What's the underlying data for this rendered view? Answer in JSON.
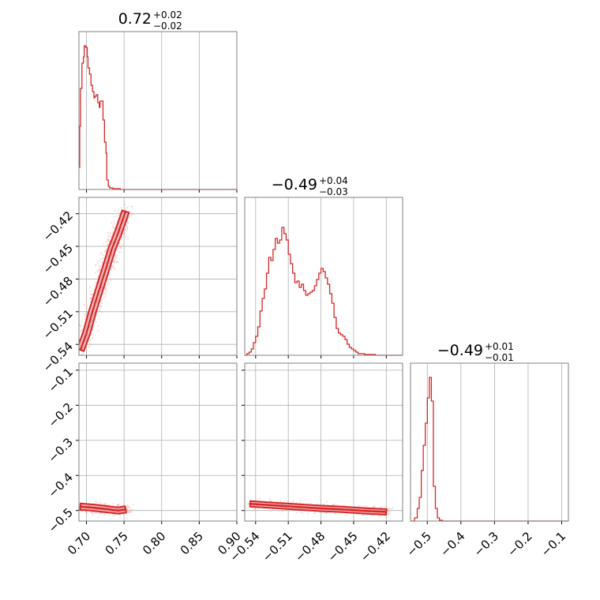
{
  "chart_data": [
    {
      "type": "histogram",
      "panel": "hist-param-1",
      "title": {
        "value": "0.72",
        "plus": "+0.02",
        "minus": "−0.02"
      },
      "xlim": [
        0.69,
        0.9
      ],
      "xticks": [
        0.7,
        0.75,
        0.8,
        0.85,
        0.9
      ],
      "xtick_labels": [],
      "grid": true,
      "bins": [
        {
          "x": 0.69,
          "y": 0.14
        },
        {
          "x": 0.691,
          "y": 0.4
        },
        {
          "x": 0.692,
          "y": 0.64
        },
        {
          "x": 0.694,
          "y": 0.8
        },
        {
          "x": 0.696,
          "y": 0.84
        },
        {
          "x": 0.697,
          "y": 0.91
        },
        {
          "x": 0.699,
          "y": 0.9
        },
        {
          "x": 0.701,
          "y": 0.84
        },
        {
          "x": 0.702,
          "y": 0.77
        },
        {
          "x": 0.704,
          "y": 0.73
        },
        {
          "x": 0.706,
          "y": 0.66
        },
        {
          "x": 0.708,
          "y": 0.62
        },
        {
          "x": 0.71,
          "y": 0.58
        },
        {
          "x": 0.711,
          "y": 0.59
        },
        {
          "x": 0.713,
          "y": 0.6
        },
        {
          "x": 0.715,
          "y": 0.55
        },
        {
          "x": 0.717,
          "y": 0.52
        },
        {
          "x": 0.718,
          "y": 0.56
        },
        {
          "x": 0.72,
          "y": 0.56
        },
        {
          "x": 0.722,
          "y": 0.44
        },
        {
          "x": 0.724,
          "y": 0.3
        },
        {
          "x": 0.726,
          "y": 0.23
        },
        {
          "x": 0.727,
          "y": 0.06
        },
        {
          "x": 0.729,
          "y": 0.02
        },
        {
          "x": 0.731,
          "y": 0.01
        },
        {
          "x": 0.735,
          "y": 0.005
        },
        {
          "x": 0.745,
          "y": 0.0
        }
      ]
    },
    {
      "type": "histogram",
      "panel": "hist-param-2",
      "title": {
        "value": "−0.49",
        "plus": "+0.04",
        "minus": "−0.03"
      },
      "xlim": [
        -0.55,
        -0.405
      ],
      "xticks": [
        -0.54,
        -0.51,
        -0.48,
        -0.45,
        -0.42
      ],
      "xtick_labels": [],
      "grid": true,
      "bins": [
        {
          "x": -0.55,
          "y": 0.0
        },
        {
          "x": -0.548,
          "y": 0.01
        },
        {
          "x": -0.546,
          "y": 0.02
        },
        {
          "x": -0.544,
          "y": 0.04
        },
        {
          "x": -0.542,
          "y": 0.08
        },
        {
          "x": -0.54,
          "y": 0.12
        },
        {
          "x": -0.538,
          "y": 0.18
        },
        {
          "x": -0.536,
          "y": 0.28
        },
        {
          "x": -0.534,
          "y": 0.36
        },
        {
          "x": -0.532,
          "y": 0.42
        },
        {
          "x": -0.53,
          "y": 0.52
        },
        {
          "x": -0.528,
          "y": 0.62
        },
        {
          "x": -0.526,
          "y": 0.6
        },
        {
          "x": -0.524,
          "y": 0.67
        },
        {
          "x": -0.522,
          "y": 0.74
        },
        {
          "x": -0.52,
          "y": 0.71
        },
        {
          "x": -0.518,
          "y": 0.73
        },
        {
          "x": -0.516,
          "y": 0.81
        },
        {
          "x": -0.514,
          "y": 0.77
        },
        {
          "x": -0.512,
          "y": 0.73
        },
        {
          "x": -0.51,
          "y": 0.64
        },
        {
          "x": -0.508,
          "y": 0.58
        },
        {
          "x": -0.506,
          "y": 0.52
        },
        {
          "x": -0.504,
          "y": 0.46
        },
        {
          "x": -0.502,
          "y": 0.47
        },
        {
          "x": -0.5,
          "y": 0.43
        },
        {
          "x": -0.498,
          "y": 0.45
        },
        {
          "x": -0.496,
          "y": 0.41
        },
        {
          "x": -0.494,
          "y": 0.38
        },
        {
          "x": -0.492,
          "y": 0.39
        },
        {
          "x": -0.49,
          "y": 0.4
        },
        {
          "x": -0.488,
          "y": 0.41
        },
        {
          "x": -0.486,
          "y": 0.44
        },
        {
          "x": -0.484,
          "y": 0.48
        },
        {
          "x": -0.482,
          "y": 0.52
        },
        {
          "x": -0.48,
          "y": 0.55
        },
        {
          "x": -0.478,
          "y": 0.53
        },
        {
          "x": -0.476,
          "y": 0.49
        },
        {
          "x": -0.474,
          "y": 0.45
        },
        {
          "x": -0.472,
          "y": 0.39
        },
        {
          "x": -0.47,
          "y": 0.33
        },
        {
          "x": -0.468,
          "y": 0.24
        },
        {
          "x": -0.466,
          "y": 0.17
        },
        {
          "x": -0.464,
          "y": 0.14
        },
        {
          "x": -0.462,
          "y": 0.13
        },
        {
          "x": -0.46,
          "y": 0.12
        },
        {
          "x": -0.458,
          "y": 0.1
        },
        {
          "x": -0.456,
          "y": 0.07
        },
        {
          "x": -0.454,
          "y": 0.05
        },
        {
          "x": -0.452,
          "y": 0.04
        },
        {
          "x": -0.45,
          "y": 0.03
        },
        {
          "x": -0.448,
          "y": 0.02
        },
        {
          "x": -0.446,
          "y": 0.01
        },
        {
          "x": -0.444,
          "y": 0.01
        },
        {
          "x": -0.44,
          "y": 0.005
        },
        {
          "x": -0.43,
          "y": 0.0
        }
      ]
    },
    {
      "type": "histogram",
      "panel": "hist-param-3",
      "title": {
        "value": "−0.49",
        "plus": "+0.01",
        "minus": "−0.01"
      },
      "xlim": [
        -0.55,
        -0.08
      ],
      "xticks": [
        -0.5,
        -0.4,
        -0.3,
        -0.2,
        -0.1
      ],
      "xtick_labels": [
        "−0.5",
        "−0.4",
        "−0.3",
        "−0.2",
        "−0.1"
      ],
      "grid": true,
      "bins": [
        {
          "x": -0.55,
          "y": 0.0
        },
        {
          "x": -0.538,
          "y": 0.02
        },
        {
          "x": -0.53,
          "y": 0.08
        },
        {
          "x": -0.524,
          "y": 0.15
        },
        {
          "x": -0.518,
          "y": 0.32
        },
        {
          "x": -0.512,
          "y": 0.48
        },
        {
          "x": -0.506,
          "y": 0.62
        },
        {
          "x": -0.5,
          "y": 0.78
        },
        {
          "x": -0.494,
          "y": 0.91
        },
        {
          "x": -0.488,
          "y": 0.76
        },
        {
          "x": -0.482,
          "y": 0.22
        },
        {
          "x": -0.476,
          "y": 0.08
        },
        {
          "x": -0.47,
          "y": 0.02
        },
        {
          "x": -0.464,
          "y": 0.005
        },
        {
          "x": -0.455,
          "y": 0.0
        }
      ]
    },
    {
      "type": "scatter",
      "panel": "joint-param-1-vs-param-2",
      "xlim": [
        0.69,
        0.9
      ],
      "ylim": [
        -0.55,
        -0.405
      ],
      "xticks": [
        0.7,
        0.75,
        0.8,
        0.85,
        0.9
      ],
      "yticks": [
        -0.54,
        -0.51,
        -0.48,
        -0.45,
        -0.42
      ],
      "ytick_labels": [
        "−0.54",
        "−0.51",
        "−0.48",
        "−0.45",
        "−0.42"
      ],
      "grid": true,
      "density_ridge": [
        {
          "x": 0.692,
          "y": -0.545
        },
        {
          "x": 0.7,
          "y": -0.53
        },
        {
          "x": 0.708,
          "y": -0.51
        },
        {
          "x": 0.717,
          "y": -0.49
        },
        {
          "x": 0.726,
          "y": -0.47
        },
        {
          "x": 0.734,
          "y": -0.452
        },
        {
          "x": 0.742,
          "y": -0.438
        },
        {
          "x": 0.752,
          "y": -0.418
        }
      ]
    },
    {
      "type": "scatter",
      "panel": "joint-param-1-vs-param-3",
      "xlim": [
        0.69,
        0.9
      ],
      "ylim": [
        -0.53,
        -0.08
      ],
      "xticks": [
        0.7,
        0.75,
        0.8,
        0.85,
        0.9
      ],
      "xtick_labels": [
        "0.70",
        "0.75",
        "0.80",
        "0.85",
        "0.90"
      ],
      "yticks": [
        -0.5,
        -0.4,
        -0.3,
        -0.2,
        -0.1
      ],
      "ytick_labels": [
        "−0.5",
        "−0.4",
        "−0.3",
        "−0.2",
        "−0.1"
      ],
      "grid": true,
      "density_ridge": [
        {
          "x": 0.692,
          "y": -0.489
        },
        {
          "x": 0.705,
          "y": -0.491
        },
        {
          "x": 0.718,
          "y": -0.494
        },
        {
          "x": 0.73,
          "y": -0.497
        },
        {
          "x": 0.742,
          "y": -0.5
        },
        {
          "x": 0.752,
          "y": -0.497
        }
      ]
    },
    {
      "type": "scatter",
      "panel": "joint-param-2-vs-param-3",
      "xlim": [
        -0.55,
        -0.405
      ],
      "ylim": [
        -0.53,
        -0.08
      ],
      "xticks": [
        -0.54,
        -0.51,
        -0.48,
        -0.45,
        -0.42
      ],
      "xtick_labels": [
        "−0.54",
        "−0.51",
        "−0.48",
        "−0.45",
        "−0.42"
      ],
      "yticks": [
        -0.5,
        -0.4,
        -0.3,
        -0.2,
        -0.1
      ],
      "ytick_labels": [],
      "grid": true,
      "density_ridge": [
        {
          "x": -0.545,
          "y": -0.481
        },
        {
          "x": -0.52,
          "y": -0.486
        },
        {
          "x": -0.5,
          "y": -0.49
        },
        {
          "x": -0.48,
          "y": -0.494
        },
        {
          "x": -0.46,
          "y": -0.497
        },
        {
          "x": -0.44,
          "y": -0.501
        },
        {
          "x": -0.42,
          "y": -0.504
        }
      ]
    }
  ],
  "colors": {
    "series": "#d62728",
    "scatter_point": "#f2a5a5",
    "contour_fill": "#eda8ab",
    "grid": "#b0b0b0",
    "spine": "#808080"
  }
}
